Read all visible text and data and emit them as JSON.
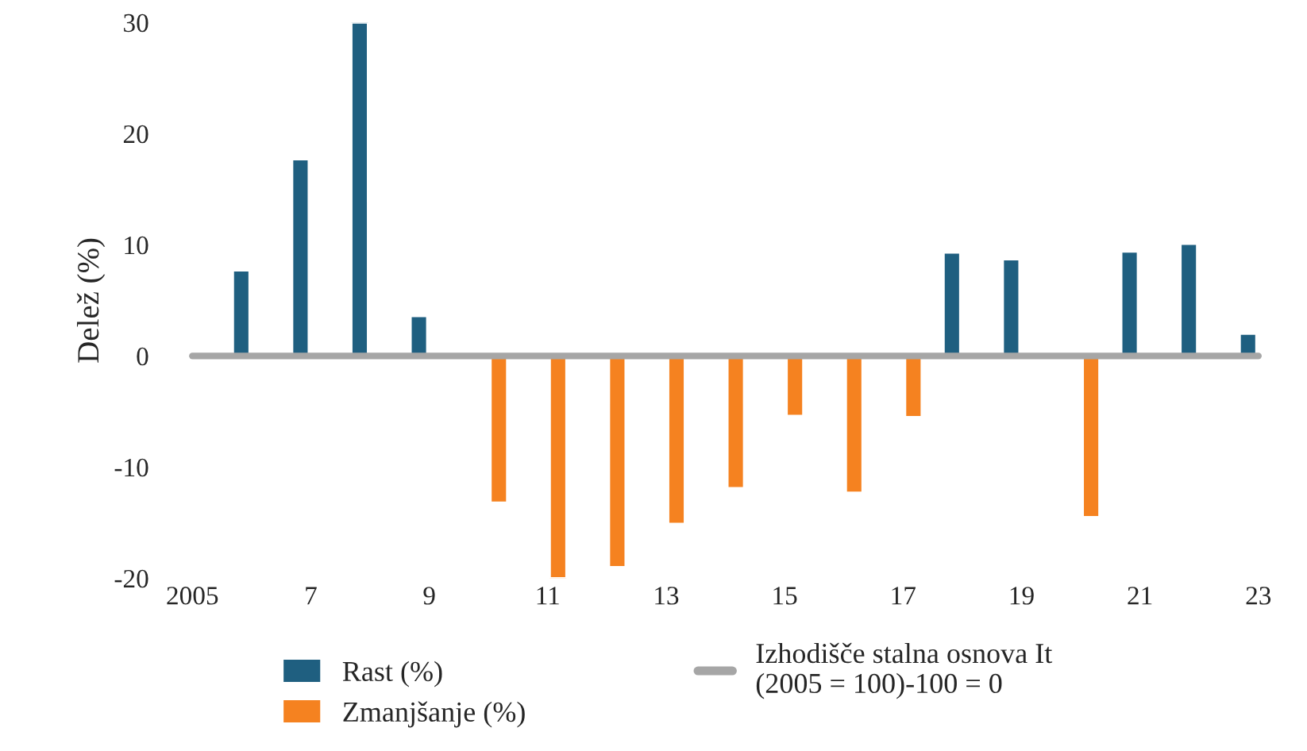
{
  "chart_data": {
    "type": "bar",
    "ylabel": "Delež (%)",
    "categories": [
      "2005",
      null,
      "7",
      null,
      "9",
      null,
      "11",
      null,
      "13",
      null,
      "15",
      null,
      "17",
      null,
      "19",
      null,
      "21",
      null,
      "23"
    ],
    "series": [
      {
        "name": "Rast (%)",
        "color": "#1f5f80",
        "values": [
          null,
          7.7,
          17.7,
          30,
          3.6,
          null,
          null,
          null,
          null,
          null,
          null,
          null,
          null,
          9.3,
          8.7,
          null,
          9.4,
          10.1,
          2.0
        ]
      },
      {
        "name": "Zmanjšanje (%)",
        "color": "#f58220",
        "values": [
          null,
          null,
          null,
          null,
          null,
          -13.2,
          -20,
          -19,
          -15.1,
          -11.9,
          -5.4,
          -12.3,
          -5.5,
          null,
          null,
          -14.5,
          null,
          null,
          null
        ]
      },
      {
        "name": "Izhodišče stalna osnova It\n(2005 = 100)-100 = 0",
        "type": "line",
        "color": "#a6a6a6",
        "values": [
          0,
          0,
          0,
          0,
          0,
          0,
          0,
          0,
          0,
          0,
          0,
          0,
          0,
          0,
          0,
          0,
          0,
          0,
          0
        ]
      }
    ],
    "ylim": [
      -20,
      30
    ],
    "yticks": [
      -20,
      -10,
      0,
      10,
      20,
      30
    ],
    "grid": false,
    "legend": "bottom"
  }
}
